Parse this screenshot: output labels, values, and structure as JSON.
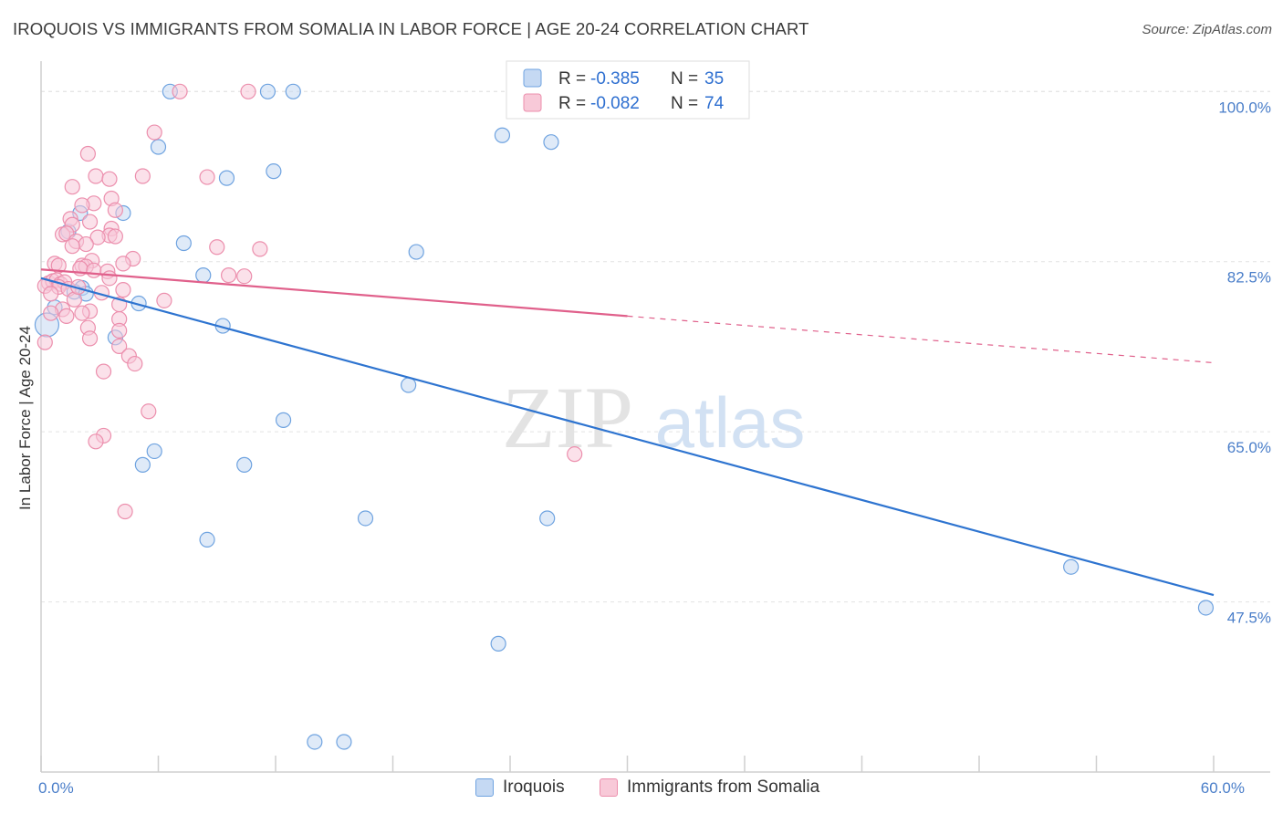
{
  "title": "IROQUOIS VS IMMIGRANTS FROM SOMALIA IN LABOR FORCE | AGE 20-24 CORRELATION CHART",
  "source": "Source: ZipAtlas.com",
  "watermark": {
    "zip": "ZIP",
    "atlas": "atlas"
  },
  "chart_data": {
    "type": "scatter",
    "xlabel": "",
    "ylabel": "In Labor Force | Age 20-24",
    "xlim": [
      0,
      60
    ],
    "ylim": [
      30,
      102
    ],
    "x_tick_labels": [
      {
        "value": 0,
        "label": "0.0%"
      },
      {
        "value": 60,
        "label": "60.0%"
      }
    ],
    "x_minor_ticks": [
      0,
      6,
      12,
      18,
      24,
      30,
      36,
      42,
      48,
      54,
      60
    ],
    "y_ticks": [
      {
        "value": 100,
        "label": "100.0%"
      },
      {
        "value": 82.5,
        "label": "82.5%"
      },
      {
        "value": 65,
        "label": "65.0%"
      },
      {
        "value": 47.5,
        "label": "47.5%"
      }
    ],
    "series": [
      {
        "name": "Iroquois",
        "color": "#6fa3e0",
        "fill": "#c5d9f3",
        "line_color": "#2e74d0",
        "R": "-0.385",
        "N": "35",
        "points": [
          [
            6.6,
            100
          ],
          [
            11.6,
            100
          ],
          [
            12.9,
            100
          ],
          [
            6.0,
            94.3
          ],
          [
            9.5,
            91.1
          ],
          [
            11.9,
            91.8
          ],
          [
            2.0,
            87.5
          ],
          [
            4.2,
            87.5
          ],
          [
            1.4,
            85.6
          ],
          [
            7.3,
            84.4
          ],
          [
            19.2,
            83.5
          ],
          [
            8.3,
            81.1
          ],
          [
            2.1,
            79.8
          ],
          [
            1.7,
            79.4
          ],
          [
            2.3,
            79.2
          ],
          [
            5.0,
            78.2
          ],
          [
            0.7,
            77.8
          ],
          [
            9.3,
            75.9
          ],
          [
            3.8,
            74.7
          ],
          [
            18.8,
            69.8
          ],
          [
            12.4,
            66.2
          ],
          [
            5.8,
            63.0
          ],
          [
            10.4,
            61.6
          ],
          [
            5.2,
            61.6
          ],
          [
            8.5,
            53.9
          ],
          [
            16.6,
            56.1
          ],
          [
            25.9,
            56.1
          ],
          [
            23.6,
            95.5
          ],
          [
            26.1,
            94.8
          ],
          [
            52.7,
            51.1
          ],
          [
            59.6,
            46.9
          ],
          [
            23.4,
            43.2
          ],
          [
            14.0,
            33.1
          ],
          [
            15.5,
            33.1
          ],
          [
            0.3,
            76.0
          ]
        ]
      },
      {
        "name": "Immigrants from Somalia",
        "color": "#ec8fad",
        "fill": "#f8c9d8",
        "line_color": "#e0608b",
        "R": "-0.082",
        "N": "74",
        "points": [
          [
            7.1,
            100
          ],
          [
            10.6,
            100
          ],
          [
            5.8,
            95.8
          ],
          [
            2.4,
            93.6
          ],
          [
            5.2,
            91.3
          ],
          [
            8.5,
            91.2
          ],
          [
            2.8,
            91.3
          ],
          [
            3.5,
            91.0
          ],
          [
            1.6,
            90.2
          ],
          [
            3.6,
            89.0
          ],
          [
            2.7,
            88.5
          ],
          [
            2.1,
            88.3
          ],
          [
            3.8,
            87.8
          ],
          [
            1.5,
            86.9
          ],
          [
            2.5,
            86.6
          ],
          [
            1.6,
            86.3
          ],
          [
            3.6,
            85.9
          ],
          [
            1.1,
            85.3
          ],
          [
            1.3,
            85.4
          ],
          [
            3.5,
            85.2
          ],
          [
            2.9,
            85.0
          ],
          [
            1.8,
            84.6
          ],
          [
            2.3,
            84.3
          ],
          [
            9.0,
            84.0
          ],
          [
            11.2,
            83.8
          ],
          [
            1.6,
            84.1
          ],
          [
            4.7,
            82.8
          ],
          [
            2.6,
            82.6
          ],
          [
            0.7,
            82.3
          ],
          [
            4.2,
            82.3
          ],
          [
            2.1,
            82.1
          ],
          [
            2.3,
            82.0
          ],
          [
            2.0,
            81.8
          ],
          [
            2.7,
            81.6
          ],
          [
            3.4,
            81.5
          ],
          [
            3.5,
            80.8
          ],
          [
            9.6,
            81.1
          ],
          [
            10.4,
            81.0
          ],
          [
            0.4,
            80.3
          ],
          [
            0.6,
            80.5
          ],
          [
            0.8,
            80.6
          ],
          [
            1.0,
            80.2
          ],
          [
            1.2,
            80.4
          ],
          [
            0.9,
            79.9
          ],
          [
            1.4,
            79.7
          ],
          [
            0.2,
            80.0
          ],
          [
            0.5,
            79.2
          ],
          [
            3.1,
            79.3
          ],
          [
            6.3,
            78.5
          ],
          [
            4.0,
            78.1
          ],
          [
            1.1,
            77.6
          ],
          [
            0.5,
            77.2
          ],
          [
            2.5,
            77.4
          ],
          [
            1.3,
            76.9
          ],
          [
            4.0,
            76.6
          ],
          [
            2.4,
            75.7
          ],
          [
            4.0,
            75.4
          ],
          [
            2.5,
            74.6
          ],
          [
            4.0,
            73.8
          ],
          [
            4.5,
            72.8
          ],
          [
            4.8,
            72.0
          ],
          [
            3.2,
            71.2
          ],
          [
            0.2,
            74.2
          ],
          [
            5.5,
            67.1
          ],
          [
            3.2,
            64.6
          ],
          [
            2.8,
            64.0
          ],
          [
            27.3,
            62.7
          ],
          [
            4.3,
            56.8
          ],
          [
            2.1,
            77.2
          ],
          [
            1.7,
            78.6
          ],
          [
            0.9,
            82.1
          ],
          [
            3.8,
            85.1
          ],
          [
            1.9,
            79.9
          ],
          [
            4.2,
            79.6
          ]
        ]
      }
    ],
    "trendlines": [
      {
        "series": "Iroquois",
        "x0": 0,
        "y0": 80.8,
        "x1": 60,
        "y1": 48.2,
        "dashed_from": null
      },
      {
        "series": "Immigrants from Somalia",
        "x0": 0,
        "y0": 81.7,
        "x1": 60,
        "y1": 72.1,
        "dashed_from": 30
      }
    ],
    "legend": {
      "position": "top-center",
      "r_prefix": "R = ",
      "n_prefix": "N = "
    }
  }
}
